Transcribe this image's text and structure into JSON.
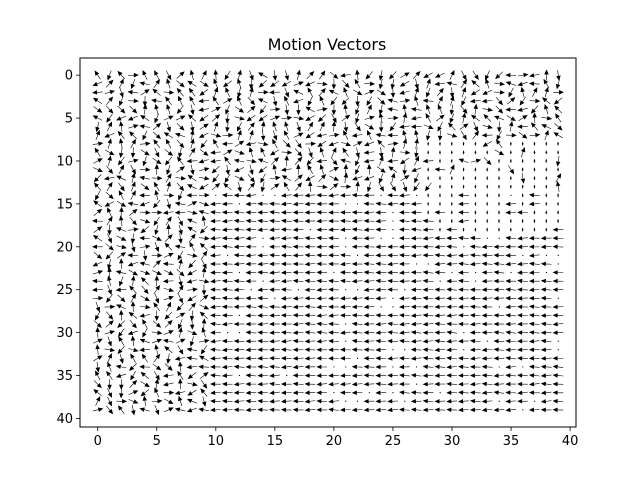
{
  "chart_data": {
    "type": "quiver",
    "title": "Motion Vectors",
    "xlabel": "",
    "ylabel": "",
    "xlim": [
      -1.5,
      40.5
    ],
    "ylim": [
      41,
      -2
    ],
    "y_inverted": true,
    "grid": false,
    "xticks": [
      0,
      5,
      10,
      15,
      20,
      25,
      30,
      35,
      40
    ],
    "yticks": [
      0,
      5,
      10,
      15,
      20,
      25,
      30,
      35,
      40
    ],
    "grid_size": {
      "cols": 40,
      "rows": 40
    },
    "field_description": "Per-pixel motion vectors on a 40x40 grid; upper rows and left edge show random directions, large lower-right region shows mostly uniform leftward motion with some near-zero vectors.",
    "regions": {
      "noisy_top_rows": [
        0,
        14
      ],
      "noisy_left_cols": [
        0,
        10
      ],
      "coherent_leftward_block": {
        "x": [
          10,
          39
        ],
        "y": [
          14,
          39
        ],
        "u": -1,
        "v": 0
      },
      "near_zero_block": {
        "x": [
          28,
          39
        ],
        "y": [
          8,
          18
        ]
      }
    }
  }
}
